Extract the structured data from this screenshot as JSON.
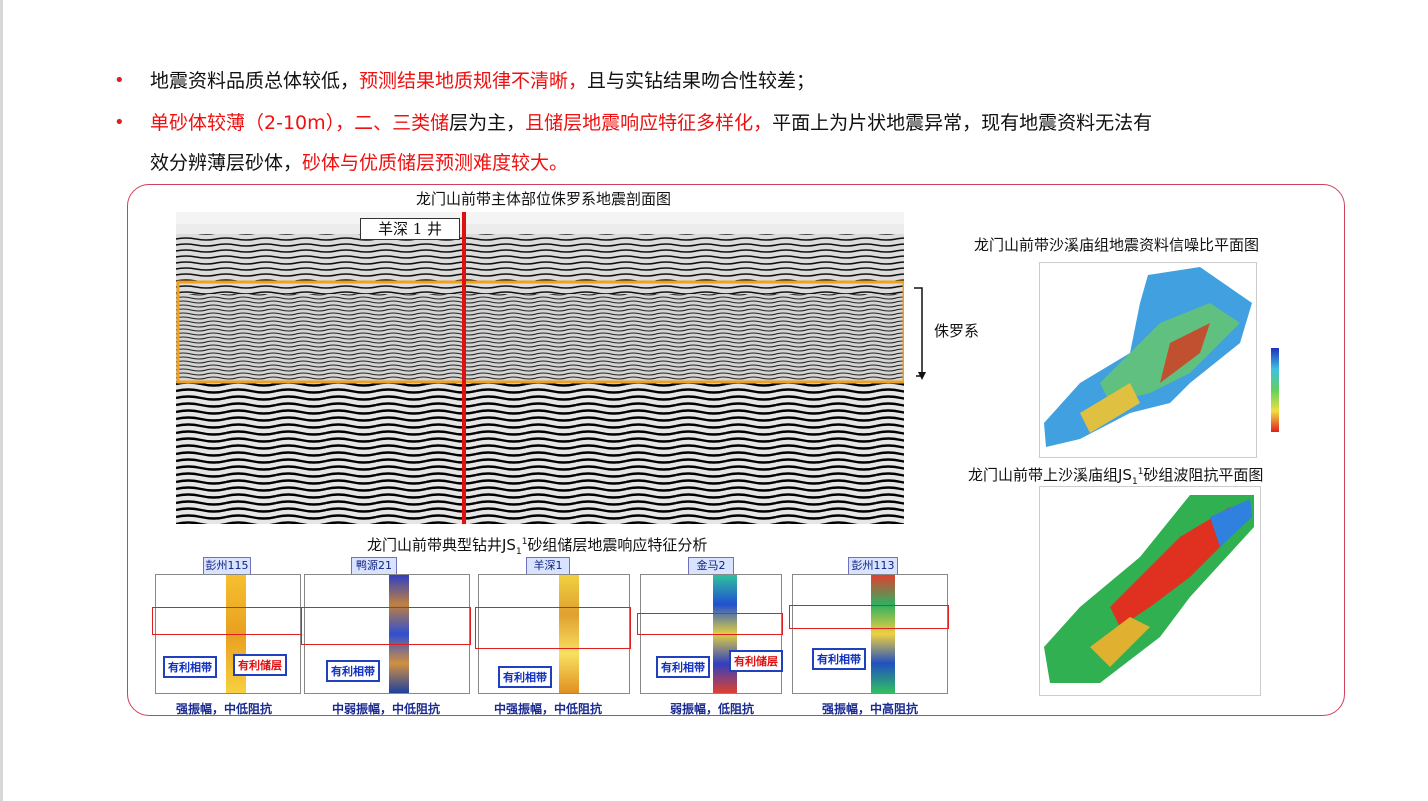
{
  "bullets": [
    {
      "segments": [
        {
          "text": "地震资料品质总体较低，",
          "color": "#111111"
        },
        {
          "text": "预测结果地质规律不清晰，",
          "color": "#ee1111"
        },
        {
          "text": "且与实钻结果吻合性较差；",
          "color": "#111111"
        }
      ]
    },
    {
      "segments": [
        {
          "text": "单砂体较薄（2-10m），二、三类储",
          "color": "#ee1111"
        },
        {
          "text": "层为主，",
          "color": "#111111"
        },
        {
          "text": "且储层地震响应特征多样化，",
          "color": "#ee1111"
        },
        {
          "text": "平面上为片状地震异常，现有地震资料无法有",
          "color": "#111111"
        }
      ],
      "continuation": [
        {
          "text": "效分辨薄层砂体，",
          "color": "#111111"
        },
        {
          "text": "砂体与优质储层预测难度较大。",
          "color": "#ee1111"
        }
      ]
    }
  ],
  "seismic_section": {
    "title": "龙门山前带主体部位侏罗系地震剖面图",
    "well_label": "羊深 1 井",
    "zone_label": "侏罗系"
  },
  "map_snr": {
    "title": "龙门山前带沙溪庙组地震资料信噪比平面图"
  },
  "map_impedance": {
    "title_prefix": "龙门山前带上沙溪庙组JS",
    "title_sub": "1",
    "title_sup": "1",
    "title_suffix": "砂组波阻抗平面图"
  },
  "well_analysis": {
    "title_prefix": "龙门山前带典型钻井JS",
    "title_sub": "1",
    "title_sup": "1",
    "title_suffix": "砂组储层地震响应特征分析",
    "wells": [
      {
        "name": "彭州115",
        "caption": "强振幅，中低阻抗",
        "callouts": [
          "有利相带",
          "有利储层"
        ]
      },
      {
        "name": "鸭源21",
        "caption": "中弱振幅，中低阻抗",
        "callouts": [
          "有利相带"
        ]
      },
      {
        "name": "羊深1",
        "caption": "中强振幅，中低阻抗",
        "callouts": [
          "有利相带"
        ]
      },
      {
        "name": "金马2",
        "caption": "弱振幅，低阻抗",
        "callouts": [
          "有利相带",
          "有利储层"
        ]
      },
      {
        "name": "彭州113",
        "caption": "强振幅，中高阻抗",
        "callouts": [
          "有利相带"
        ]
      }
    ]
  },
  "colors": {
    "accent_red": "#ee1111",
    "frame": "#d0405a",
    "zone_box": "#f0a020",
    "well_line": "#e01010"
  }
}
